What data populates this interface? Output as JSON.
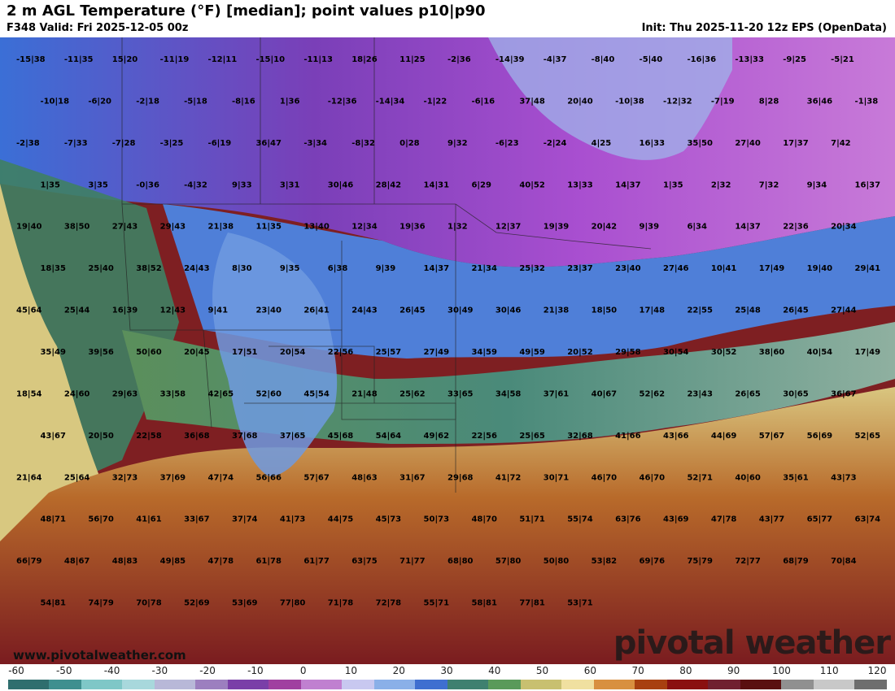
{
  "header": {
    "title": "2 m AGL Temperature (°F) [median]; point values p10|p90",
    "valid": "F348 Valid: Fri 2025-12-05 00z",
    "init": "Init: Thu 2025-11-20 12z EPS (OpenData)"
  },
  "map": {
    "point_values": [
      "-15|38",
      "-11|35",
      "15|20",
      "-11|19",
      "-12|11",
      "-15|10",
      "-11|13",
      "18|26",
      "11|25",
      "-2|36",
      "-14|39",
      "-4|37",
      "-8|40",
      "-5|40",
      "-16|36",
      "-13|33",
      "-9|25",
      "-5|21",
      "-10|18",
      "-6|20",
      "-2|18",
      "-5|18",
      "-8|16",
      "1|36",
      "-12|36",
      "-14|34",
      "-1|22",
      "-6|16",
      "37|48",
      "20|40",
      "-10|38",
      "-12|32",
      "-7|19",
      "8|28",
      "36|46",
      "-1|38",
      "-2|38",
      "-7|33",
      "-7|28",
      "-3|25",
      "-6|19",
      "36|47",
      "-3|34",
      "-8|32",
      "0|28",
      "9|32",
      "-6|23",
      "-2|24",
      "4|25",
      "16|33",
      "35|50",
      "27|40",
      "17|37",
      "7|42",
      "1|35",
      "3|35",
      "-0|36",
      "-4|32",
      "9|33",
      "3|31",
      "30|46",
      "28|42",
      "14|31",
      "6|29",
      "40|52",
      "13|33",
      "14|37",
      "1|35",
      "2|32",
      "7|32",
      "9|34",
      "16|37",
      "19|40",
      "38|50",
      "27|43",
      "29|43",
      "21|38",
      "11|35",
      "13|40",
      "12|34",
      "19|36",
      "1|32",
      "12|37",
      "19|39",
      "20|42",
      "9|39",
      "6|34",
      "14|37",
      "22|36",
      "20|34",
      "18|35",
      "25|40",
      "38|52",
      "24|43",
      "8|30",
      "9|35",
      "6|38",
      "9|39",
      "14|37",
      "21|34",
      "25|32",
      "23|37",
      "23|40",
      "27|46",
      "10|41",
      "17|49",
      "19|40",
      "29|41",
      "45|64",
      "25|44",
      "16|39",
      "12|43",
      "9|41",
      "23|40",
      "26|41",
      "24|43",
      "26|45",
      "30|49",
      "30|46",
      "21|38",
      "18|50",
      "17|48",
      "22|55",
      "25|48",
      "26|45",
      "27|44",
      "35|49",
      "39|56",
      "50|60",
      "20|45",
      "17|51",
      "20|54",
      "22|56",
      "25|57",
      "27|49",
      "34|59",
      "49|59",
      "20|52",
      "29|58",
      "30|54",
      "30|52",
      "38|60",
      "40|54",
      "17|49",
      "18|54",
      "24|60",
      "29|63",
      "33|58",
      "42|65",
      "52|60",
      "45|54",
      "21|48",
      "25|62",
      "33|65",
      "34|58",
      "37|61",
      "40|67",
      "52|62",
      "23|43",
      "26|65",
      "30|65",
      "36|67",
      "43|67",
      "20|50",
      "22|58",
      "36|68",
      "37|68",
      "37|65",
      "45|68",
      "54|64",
      "49|62",
      "22|56",
      "25|65",
      "32|68",
      "41|66",
      "43|66",
      "44|69",
      "57|67",
      "56|69",
      "52|65",
      "21|64",
      "25|64",
      "32|73",
      "37|69",
      "47|74",
      "56|66",
      "57|67",
      "48|63",
      "31|67",
      "29|68",
      "41|72",
      "30|71",
      "46|70",
      "46|70",
      "52|71",
      "40|60",
      "35|61",
      "43|73",
      "48|71",
      "56|70",
      "41|61",
      "33|67",
      "37|74",
      "41|73",
      "44|75",
      "45|73",
      "50|73",
      "48|70",
      "51|71",
      "55|74",
      "63|76",
      "43|69",
      "47|78",
      "43|77",
      "65|77",
      "63|74",
      "66|79",
      "48|67",
      "48|83",
      "49|85",
      "47|78",
      "61|78",
      "61|77",
      "63|75",
      "71|77",
      "68|80",
      "57|80",
      "50|80",
      "53|82",
      "69|76",
      "75|79",
      "72|77",
      "68|79",
      "70|84",
      "54|81",
      "74|79",
      "70|78",
      "52|69",
      "53|69",
      "77|80",
      "71|78",
      "72|78",
      "55|71",
      "58|81",
      "77|81",
      "53|71"
    ]
  },
  "watermark": "pivotal weather",
  "site": "www.pivotalweather.com",
  "colorbar": {
    "labels": [
      "-60",
      "-50",
      "-40",
      "-30",
      "-20",
      "-10",
      "0",
      "10",
      "20",
      "30",
      "40",
      "50",
      "60",
      "70",
      "80",
      "90",
      "100",
      "110",
      "120"
    ],
    "colors": [
      "#2f6e6e",
      "#3f8f8f",
      "#7fc7c7",
      "#a8d8dc",
      "#b8b8d8",
      "#9c7fbf",
      "#7a3fa8",
      "#a040a0",
      "#c080d0",
      "#c8c8f0",
      "#8ab0e8",
      "#3f6fd0",
      "#3f8070",
      "#5a9a5a",
      "#c8c070",
      "#f0e0a0",
      "#d89040",
      "#a84010",
      "#8a1010",
      "#702030",
      "#5a1010",
      "#909090",
      "#c8c8c8",
      "#6e6e6e"
    ]
  }
}
